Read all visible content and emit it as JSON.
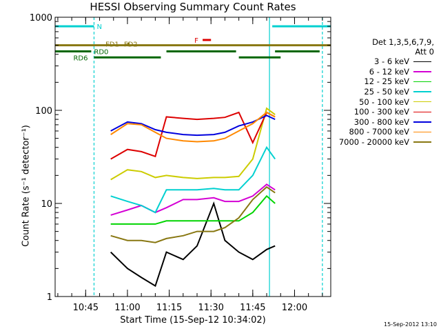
{
  "chart_data": {
    "type": "line",
    "title": "HESSI Observing Summary Count Rates",
    "xlabel": "Start Time (15-Sep-12 10:34:02)",
    "ylabel": "Count Rate (s⁻¹ detector⁻¹)",
    "yscale": "log",
    "ylim": [
      1,
      1000
    ],
    "xlim": [
      "10:34:02",
      "12:13:00"
    ],
    "x_ticks": [
      "10:45",
      "11:00",
      "11:15",
      "11:30",
      "11:45",
      "12:00"
    ],
    "y_ticks": [
      "1",
      "10",
      "100",
      "1000"
    ],
    "legend_header": [
      "Det 1,3,5,6,7,9,",
      "Att 0"
    ],
    "series": [
      {
        "name": "3 - 6 keV",
        "color": "#000000",
        "points": [
          [
            "10:54",
            3.0
          ],
          [
            "11:00",
            2.0
          ],
          [
            "11:05",
            1.6
          ],
          [
            "11:10",
            1.3
          ],
          [
            "11:14",
            3.0
          ],
          [
            "11:20",
            2.5
          ],
          [
            "11:25",
            3.5
          ],
          [
            "11:31",
            10.0
          ],
          [
            "11:35",
            4.0
          ],
          [
            "11:40",
            3.0
          ],
          [
            "11:45",
            2.5
          ],
          [
            "11:50",
            3.2
          ],
          [
            "11:53",
            3.5
          ]
        ]
      },
      {
        "name": "6 - 12 keV",
        "color": "#d400d4",
        "points": [
          [
            "10:54",
            7.5
          ],
          [
            "11:00",
            8.5
          ],
          [
            "11:05",
            9.5
          ],
          [
            "11:10",
            8.0
          ],
          [
            "11:14",
            9.0
          ],
          [
            "11:20",
            11.0
          ],
          [
            "11:25",
            11.0
          ],
          [
            "11:31",
            11.5
          ],
          [
            "11:35",
            10.5
          ],
          [
            "11:40",
            10.5
          ],
          [
            "11:45",
            12.0
          ],
          [
            "11:50",
            16.0
          ],
          [
            "11:53",
            14.0
          ]
        ]
      },
      {
        "name": "12 - 25 keV",
        "color": "#00d400",
        "points": [
          [
            "10:54",
            6.0
          ],
          [
            "11:00",
            6.0
          ],
          [
            "11:05",
            6.0
          ],
          [
            "11:10",
            6.0
          ],
          [
            "11:14",
            6.5
          ],
          [
            "11:20",
            6.5
          ],
          [
            "11:25",
            6.5
          ],
          [
            "11:31",
            6.5
          ],
          [
            "11:35",
            6.5
          ],
          [
            "11:40",
            6.5
          ],
          [
            "11:45",
            8.0
          ],
          [
            "11:50",
            12.0
          ],
          [
            "11:53",
            10.0
          ]
        ]
      },
      {
        "name": "25 - 50 keV",
        "color": "#00d0d0",
        "points": [
          [
            "10:54",
            12.0
          ],
          [
            "11:00",
            10.5
          ],
          [
            "11:05",
            9.5
          ],
          [
            "11:10",
            8.0
          ],
          [
            "11:14",
            14.0
          ],
          [
            "11:20",
            14.0
          ],
          [
            "11:25",
            14.0
          ],
          [
            "11:31",
            14.5
          ],
          [
            "11:35",
            14.0
          ],
          [
            "11:40",
            14.0
          ],
          [
            "11:45",
            20.0
          ],
          [
            "11:50",
            40.0
          ],
          [
            "11:53",
            30.0
          ]
        ]
      },
      {
        "name": "50 - 100 keV",
        "color": "#cccc00",
        "points": [
          [
            "10:54",
            18.0
          ],
          [
            "11:00",
            23.0
          ],
          [
            "11:05",
            22.0
          ],
          [
            "11:10",
            19.0
          ],
          [
            "11:14",
            20.0
          ],
          [
            "11:20",
            19.0
          ],
          [
            "11:25",
            18.5
          ],
          [
            "11:31",
            19.0
          ],
          [
            "11:35",
            19.0
          ],
          [
            "11:40",
            19.5
          ],
          [
            "11:45",
            30.0
          ],
          [
            "11:50",
            105.0
          ],
          [
            "11:53",
            90.0
          ]
        ]
      },
      {
        "name": "100 - 300 keV",
        "color": "#dd0000",
        "points": [
          [
            "10:54",
            30.0
          ],
          [
            "11:00",
            38.0
          ],
          [
            "11:05",
            36.0
          ],
          [
            "11:10",
            32.0
          ],
          [
            "11:14",
            85.0
          ],
          [
            "11:20",
            82.0
          ],
          [
            "11:25",
            80.0
          ],
          [
            "11:31",
            82.0
          ],
          [
            "11:35",
            84.0
          ],
          [
            "11:40",
            95.0
          ],
          [
            "11:45",
            45.0
          ],
          [
            "11:50",
            95.0
          ],
          [
            "11:53",
            85.0
          ]
        ]
      },
      {
        "name": "300 - 800 keV",
        "color": "#0000dd",
        "points": [
          [
            "10:54",
            60.0
          ],
          [
            "11:00",
            75.0
          ],
          [
            "11:05",
            72.0
          ],
          [
            "11:10",
            62.0
          ],
          [
            "11:14",
            58.0
          ],
          [
            "11:20",
            55.0
          ],
          [
            "11:25",
            54.0
          ],
          [
            "11:31",
            55.0
          ],
          [
            "11:35",
            58.0
          ],
          [
            "11:40",
            68.0
          ],
          [
            "11:45",
            75.0
          ],
          [
            "11:50",
            88.0
          ],
          [
            "11:53",
            80.0
          ]
        ]
      },
      {
        "name": "800 - 7000 keV",
        "color": "#ff8800",
        "points": [
          [
            "10:54",
            55.0
          ],
          [
            "11:00",
            72.0
          ],
          [
            "11:05",
            70.0
          ],
          [
            "11:10",
            58.0
          ],
          [
            "11:14",
            50.0
          ],
          [
            "11:20",
            47.0
          ],
          [
            "11:25",
            46.0
          ],
          [
            "11:31",
            47.0
          ],
          [
            "11:35",
            50.0
          ],
          [
            "11:40",
            60.0
          ],
          [
            "11:45",
            72.0
          ],
          [
            "11:50",
            95.0
          ],
          [
            "11:53",
            85.0
          ]
        ]
      },
      {
        "name": "7000 - 20000 keV",
        "color": "#887711",
        "points": [
          [
            "10:54",
            4.5
          ],
          [
            "11:00",
            4.0
          ],
          [
            "11:05",
            4.0
          ],
          [
            "11:10",
            3.8
          ],
          [
            "11:14",
            4.2
          ],
          [
            "11:20",
            4.5
          ],
          [
            "11:25",
            5.0
          ],
          [
            "11:31",
            5.0
          ],
          [
            "11:35",
            5.5
          ],
          [
            "11:40",
            7.0
          ],
          [
            "11:45",
            11.0
          ],
          [
            "11:50",
            15.0
          ],
          [
            "11:53",
            13.0
          ]
        ]
      }
    ],
    "flag_bars": [
      {
        "label": "N",
        "color": "#00d0d0",
        "y": 800,
        "segments": [
          [
            "10:34",
            "10:48"
          ],
          [
            "11:52",
            "12:13"
          ]
        ]
      },
      {
        "label": "F",
        "color": "#dd0000",
        "y": 570,
        "segments": [
          [
            "11:27",
            "11:30"
          ]
        ]
      },
      {
        "label": "FD1",
        "color": "#887711",
        "y": 520,
        "segments": [
          [
            "11:00",
            "11:00"
          ]
        ]
      },
      {
        "label": "FD2",
        "color": "#887711",
        "y": 500,
        "segments": [
          [
            "10:34",
            "12:13"
          ]
        ]
      },
      {
        "label": "RD0",
        "color": "#006600",
        "y": 430,
        "segments": [
          [
            "10:34",
            "10:47"
          ],
          [
            "11:14",
            "11:39"
          ],
          [
            "11:53",
            "12:09"
          ]
        ]
      },
      {
        "label": "RD6",
        "color": "#006600",
        "y": 370,
        "segments": [
          [
            "10:48",
            "11:12"
          ],
          [
            "11:40",
            "11:55"
          ]
        ]
      }
    ],
    "vertical_markers": [
      {
        "x": "10:48",
        "color": "#00d0d0",
        "style": "dashed"
      },
      {
        "x": "11:51",
        "color": "#00d0d0",
        "style": "solid"
      },
      {
        "x": "12:10",
        "color": "#00d0d0",
        "style": "dashed"
      }
    ],
    "grid": false,
    "legend_position": "right"
  },
  "timestamp": "15-Sep-2012 13:10"
}
